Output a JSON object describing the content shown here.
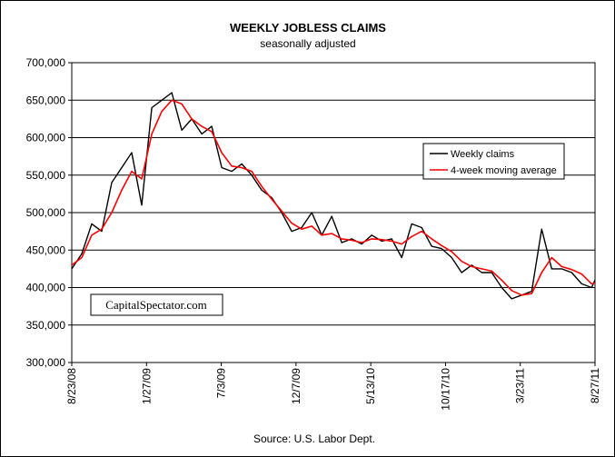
{
  "chart_data": {
    "type": "line",
    "title": "WEEKLY JOBLESS CLAIMS",
    "subtitle": "seasonally adjusted",
    "source": "Source: U.S. Labor Dept.",
    "watermark": "CapitalSpectator.com",
    "ylim": [
      300000,
      700000
    ],
    "y_ticks": [
      "700,000",
      "650,000",
      "600,000",
      "550,000",
      "500,000",
      "450,000",
      "400,000",
      "350,000",
      "300,000"
    ],
    "y_tick_values": [
      700000,
      650000,
      600000,
      550000,
      500000,
      450000,
      400000,
      350000,
      300000
    ],
    "x_tick_labels": [
      "8/23/08",
      "1/27/09",
      "7/3/09",
      "12/7/09",
      "5/13/10",
      "10/17/10",
      "3/23/11",
      "8/27/11"
    ],
    "x_range": [
      "8/23/08",
      "8/27/11"
    ],
    "grid": "horizontal",
    "legend": "right",
    "colors": {
      "weekly": "#000000",
      "moving_avg": "#ff0000",
      "plot_bg": "#ffffff"
    },
    "series": [
      {
        "name": "Weekly claims",
        "x": [
          "8/23/08",
          "9/13/08",
          "10/4/08",
          "10/25/08",
          "11/15/08",
          "12/6/08",
          "12/27/08",
          "1/17/09",
          "2/7/09",
          "2/28/09",
          "3/21/09",
          "4/11/09",
          "5/2/09",
          "5/23/09",
          "6/13/09",
          "7/4/09",
          "7/25/09",
          "8/15/09",
          "9/5/09",
          "9/26/09",
          "10/17/09",
          "11/7/09",
          "11/28/09",
          "12/19/09",
          "1/9/10",
          "1/30/10",
          "2/20/10",
          "3/13/10",
          "4/3/10",
          "4/24/10",
          "5/15/10",
          "6/5/10",
          "6/26/10",
          "7/17/10",
          "8/7/10",
          "8/28/10",
          "9/18/10",
          "10/9/10",
          "10/30/10",
          "11/20/10",
          "12/11/10",
          "1/1/11",
          "1/22/11",
          "2/12/11",
          "3/5/11",
          "3/26/11",
          "4/16/11",
          "5/7/11",
          "5/28/11",
          "6/18/11",
          "7/9/11",
          "7/30/11",
          "8/20/11",
          "8/27/11"
        ],
        "values": [
          425000,
          445000,
          485000,
          475000,
          540000,
          560000,
          580000,
          510000,
          640000,
          650000,
          660000,
          610000,
          625000,
          605000,
          615000,
          560000,
          555000,
          565000,
          550000,
          530000,
          520000,
          500000,
          475000,
          480000,
          500000,
          470000,
          495000,
          460000,
          465000,
          458000,
          470000,
          462000,
          465000,
          440000,
          485000,
          480000,
          455000,
          452000,
          440000,
          420000,
          430000,
          420000,
          420000,
          400000,
          385000,
          390000,
          395000,
          478000,
          425000,
          425000,
          420000,
          405000,
          400000,
          410000
        ]
      },
      {
        "name": "4-week moving average",
        "x": [
          "8/23/08",
          "9/13/08",
          "10/4/08",
          "10/25/08",
          "11/15/08",
          "12/6/08",
          "12/27/08",
          "1/17/09",
          "2/7/09",
          "2/28/09",
          "3/21/09",
          "4/11/09",
          "5/2/09",
          "5/23/09",
          "6/13/09",
          "7/4/09",
          "7/25/09",
          "8/15/09",
          "9/5/09",
          "9/26/09",
          "10/17/09",
          "11/7/09",
          "11/28/09",
          "12/19/09",
          "1/9/10",
          "1/30/10",
          "2/20/10",
          "3/13/10",
          "4/3/10",
          "4/24/10",
          "5/15/10",
          "6/5/10",
          "6/26/10",
          "7/17/10",
          "8/7/10",
          "8/28/10",
          "9/18/10",
          "10/9/10",
          "10/30/10",
          "11/20/10",
          "12/11/10",
          "1/1/11",
          "1/22/11",
          "2/12/11",
          "3/5/11",
          "3/26/11",
          "4/16/11",
          "5/7/11",
          "5/28/11",
          "6/18/11",
          "7/9/11",
          "7/30/11",
          "8/20/11",
          "8/27/11"
        ],
        "values": [
          430000,
          440000,
          470000,
          478000,
          500000,
          530000,
          555000,
          545000,
          605000,
          635000,
          650000,
          645000,
          625000,
          615000,
          608000,
          580000,
          562000,
          560000,
          555000,
          535000,
          518000,
          502000,
          486000,
          478000,
          482000,
          470000,
          472000,
          465000,
          463000,
          460000,
          465000,
          464000,
          462000,
          458000,
          468000,
          475000,
          465000,
          456000,
          448000,
          435000,
          428000,
          425000,
          422000,
          410000,
          396000,
          390000,
          392000,
          420000,
          440000,
          428000,
          424000,
          418000,
          405000,
          406000
        ]
      }
    ]
  }
}
